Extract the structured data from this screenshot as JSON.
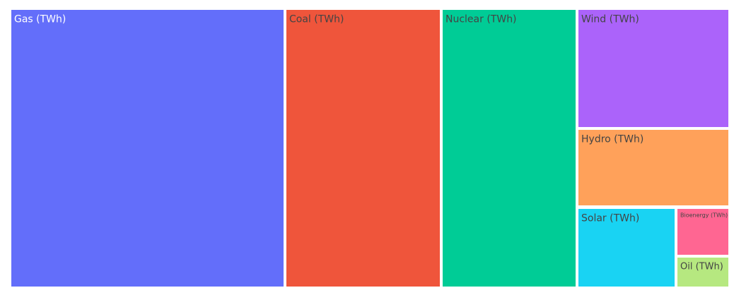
{
  "chart_data": {
    "type": "treemap",
    "title": "",
    "categories": [
      "Gas (TWh)",
      "Coal (TWh)",
      "Nuclear (TWh)",
      "Wind (TWh)",
      "Hydro (TWh)",
      "Solar (TWh)",
      "Bioenergy (TWh)",
      "Oil (TWh)"
    ],
    "values": [
      1600,
      900,
      780,
      430,
      260,
      230,
      60,
      40
    ],
    "colors": [
      "#636EFA",
      "#EF553B",
      "#00CC96",
      "#AB63FA",
      "#FFA15A",
      "#19D3F3",
      "#FF6692",
      "#B6E880"
    ],
    "label_colors": [
      "#ffffff",
      "#444444",
      "#444444",
      "#444444",
      "#444444",
      "#444444",
      "#444444",
      "#444444"
    ]
  }
}
